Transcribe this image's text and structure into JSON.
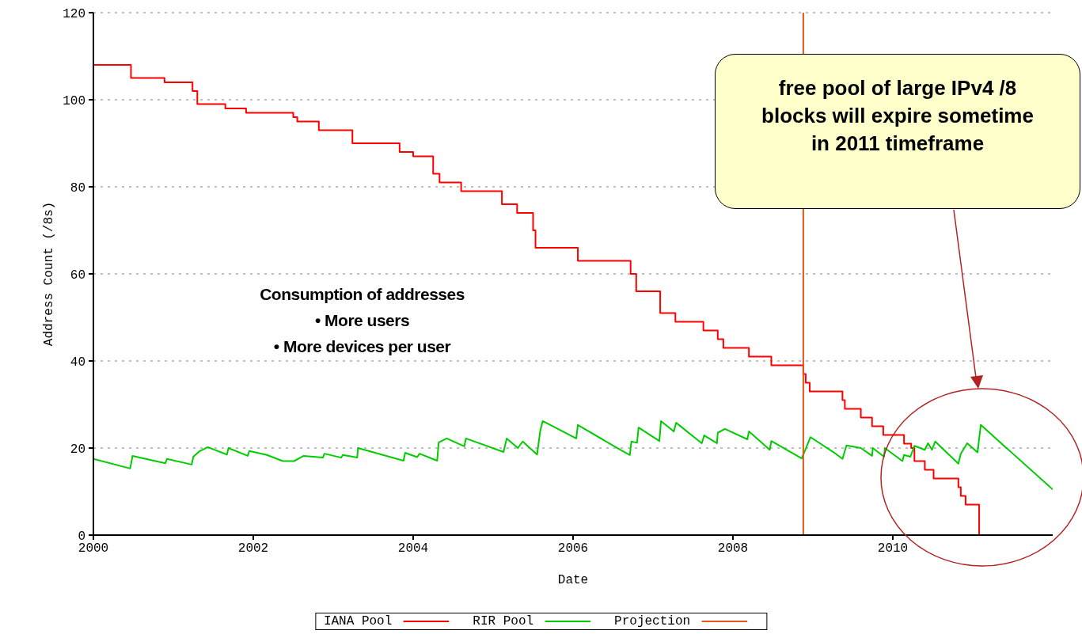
{
  "chart_data": {
    "type": "line",
    "xlabel": "Date",
    "ylabel": "Address Count (/8s)",
    "xlim": [
      2000,
      2012
    ],
    "xticks": [
      2000,
      2002,
      2004,
      2006,
      2008,
      2010
    ],
    "ylim": [
      0,
      120
    ],
    "yticks": [
      0,
      20,
      40,
      60,
      80,
      100,
      120
    ],
    "grid": "y",
    "legend": "bottom",
    "annotations": [
      "Consumption of addresses\n• More users\n• More devices per user",
      "free pool of large IPv4 /8\nblocks will expire sometime\nin 2011 timeframe"
    ],
    "series": [
      {
        "name": "IANA Pool",
        "type": "step",
        "color": "#ff0000",
        "x": [
          2000,
          2000.47,
          2000.89,
          2001.24,
          2001.3,
          2001.65,
          2001.91,
          2002.5,
          2002.55,
          2002.82,
          2003.24,
          2003.83,
          2004.0,
          2004.25,
          2004.33,
          2004.6,
          2005.11,
          2005.3,
          2005.5,
          2005.53,
          2006.06,
          2006.72,
          2006.79,
          2007.09,
          2007.28,
          2007.63,
          2007.81,
          2007.88,
          2008.2,
          2008.48,
          2008.88,
          2008.91,
          2008.96,
          2009.37,
          2009.4,
          2009.6,
          2009.74,
          2009.88,
          2010.14,
          2010.23,
          2010.27,
          2010.4,
          2010.51,
          2010.82,
          2010.85,
          2010.91,
          2011.08
        ],
        "values": [
          108,
          105,
          104,
          102,
          99,
          98,
          97,
          96,
          95,
          93,
          90,
          88,
          87,
          83,
          81,
          79,
          76,
          74,
          70,
          66,
          63,
          60,
          56,
          51,
          49,
          47,
          45,
          43,
          41,
          39,
          37,
          35,
          33,
          31,
          29,
          27,
          25,
          23,
          21,
          20,
          17,
          15,
          13,
          11,
          9,
          7,
          0
        ]
      },
      {
        "name": "RIR Pool",
        "type": "line",
        "color": "#00cc00",
        "x": [
          2000,
          2000.46,
          2000.49,
          2000.9,
          2000.92,
          2001.23,
          2001.25,
          2001.33,
          2001.43,
          2001.67,
          2001.69,
          2001.93,
          2001.95,
          2002.17,
          2002.37,
          2002.51,
          2002.63,
          2002.87,
          2002.89,
          2003.1,
          2003.12,
          2003.3,
          2003.31,
          2003.88,
          2003.9,
          2004.05,
          2004.08,
          2004.3,
          2004.32,
          2004.42,
          2004.64,
          2004.66,
          2005.13,
          2005.17,
          2005.31,
          2005.37,
          2005.55,
          2005.59,
          2005.62,
          2006.04,
          2006.06,
          2006.59,
          2006.71,
          2006.73,
          2006.8,
          2006.82,
          2007.08,
          2007.1,
          2007.26,
          2007.29,
          2007.61,
          2007.64,
          2007.8,
          2007.81,
          2007.9,
          2008.18,
          2008.2,
          2008.46,
          2008.48,
          2008.86,
          2008.93,
          2008.97,
          2009.27,
          2009.37,
          2009.42,
          2009.6,
          2009.74,
          2009.75,
          2009.89,
          2009.9,
          2010.12,
          2010.14,
          2010.22,
          2010.27,
          2010.4,
          2010.44,
          2010.49,
          2010.53,
          2010.82,
          2010.85,
          2010.93,
          2011.06,
          2011.1,
          2012
        ],
        "values": [
          17.5,
          15.3,
          18.2,
          16.5,
          17.5,
          16.2,
          18,
          19.3,
          20.2,
          18.5,
          20,
          18.2,
          19.3,
          18.4,
          17,
          17,
          18.2,
          17.8,
          18.7,
          17.8,
          18.4,
          17.8,
          20,
          17.1,
          18.9,
          17.9,
          18.7,
          17.1,
          21.3,
          22.2,
          20.4,
          22.2,
          19.1,
          22.2,
          20,
          21.5,
          18.5,
          24,
          26.2,
          22.2,
          25.3,
          19.6,
          18.4,
          21.5,
          21.2,
          24.7,
          21.6,
          26.2,
          23.8,
          25.8,
          21.1,
          22.9,
          21.1,
          23.5,
          24.4,
          22,
          23.8,
          19.6,
          21.6,
          17.6,
          20.7,
          22.5,
          18.9,
          17.5,
          20.6,
          20,
          18.2,
          20,
          18,
          20,
          17,
          18.4,
          18,
          20.5,
          19.6,
          21.1,
          19.6,
          21.5,
          16.4,
          18.7,
          21.1,
          19,
          25.3,
          10.5
        ]
      },
      {
        "name": "Projection",
        "type": "line",
        "color": "#e0561c",
        "x": [
          2008.88,
          2008.88
        ],
        "values": [
          0,
          120
        ]
      }
    ]
  }
}
